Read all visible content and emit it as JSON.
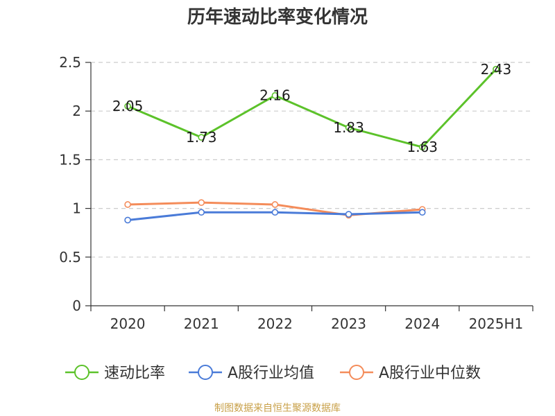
{
  "chart_data": {
    "type": "line",
    "title": "历年速动比率变化情况",
    "categories": [
      "2020",
      "2021",
      "2022",
      "2023",
      "2024",
      "2025H1"
    ],
    "ylim": [
      0,
      2.5
    ],
    "yticks": [
      "0",
      "0.5",
      "1",
      "1.5",
      "2",
      "2.5"
    ],
    "grid": true,
    "legend_position": "bottom",
    "series": [
      {
        "name": "速动比率",
        "color": "#5cc22a",
        "values": [
          2.05,
          1.73,
          2.16,
          1.83,
          1.63,
          2.43
        ],
        "labels": [
          "2.05",
          "1.73",
          "2.16",
          "1.83",
          "1.63",
          "2.43"
        ]
      },
      {
        "name": "A股行业均值",
        "color": "#4a7bd8",
        "values": [
          0.88,
          0.96,
          0.96,
          0.94,
          0.96,
          null
        ]
      },
      {
        "name": "A股行业中位数",
        "color": "#f48c5a",
        "values": [
          1.04,
          1.06,
          1.04,
          0.93,
          0.99,
          null
        ]
      }
    ],
    "source": "制图数据来自恒生聚源数据库"
  }
}
